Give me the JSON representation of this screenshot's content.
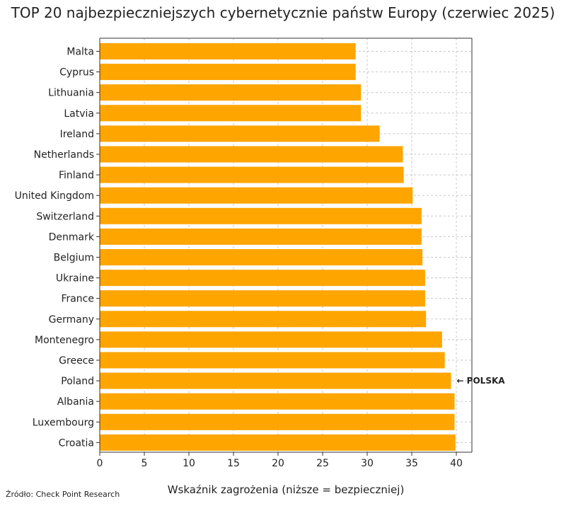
{
  "chart_data": {
    "type": "bar",
    "orientation": "horizontal",
    "title": "TOP 20 najbezpieczniejszych cybernetycznie państw Europy (czerwiec 2025)",
    "xlabel": "Wskaźnik zagrożenia (niższe = bezpieczniej)",
    "ylabel": "",
    "xlim": [
      0,
      42
    ],
    "xticks": [
      0,
      5,
      10,
      15,
      20,
      25,
      30,
      35,
      40
    ],
    "grid": true,
    "bar_color": "#FFA500",
    "categories": [
      "Malta",
      "Cyprus",
      "Lithuania",
      "Latvia",
      "Ireland",
      "Netherlands",
      "Finland",
      "United Kingdom",
      "Switzerland",
      "Denmark",
      "Belgium",
      "Ukraine",
      "France",
      "Germany",
      "Montenegro",
      "Greece",
      "Poland",
      "Albania",
      "Luxembourg",
      "Croatia"
    ],
    "values": [
      28.7,
      28.7,
      29.3,
      29.3,
      31.4,
      34.0,
      34.1,
      35.1,
      36.1,
      36.1,
      36.2,
      36.5,
      36.5,
      36.6,
      38.4,
      38.7,
      39.4,
      39.8,
      39.8,
      39.9
    ],
    "annotation": {
      "category": "Poland",
      "text": "← POLSKA"
    }
  },
  "source": "Źródło: Check Point Research"
}
